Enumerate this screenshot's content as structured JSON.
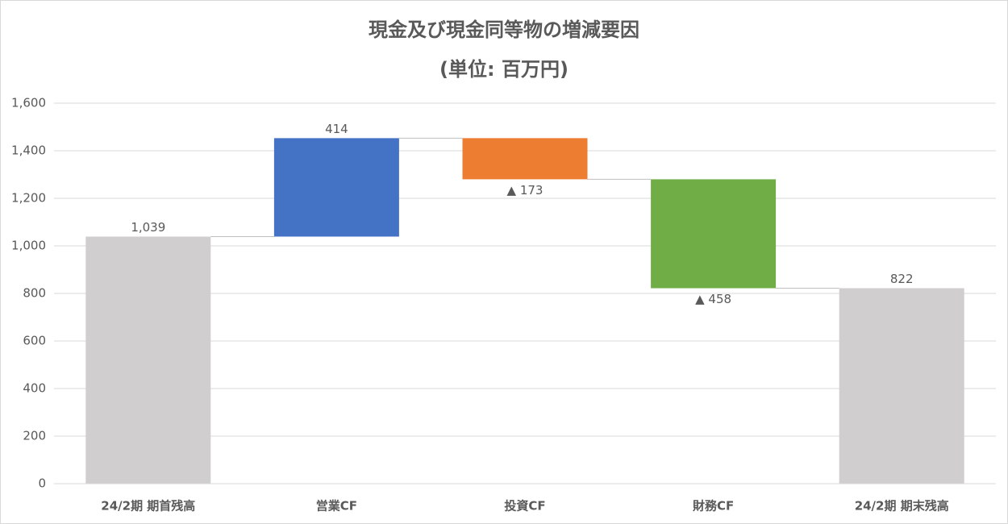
{
  "chart_data": {
    "type": "waterfall",
    "title": "現金及び現金同等物の増減要因",
    "subtitle": "(単位: 百万円)",
    "categories": [
      "24/2期 期首残高",
      "営業CF",
      "投資CF",
      "財務CF",
      "24/2期 期末残高"
    ],
    "values": [
      1039,
      414,
      -173,
      -458,
      822
    ],
    "value_labels": [
      "1,039",
      "414",
      "▲ 173",
      "▲ 458",
      "822"
    ],
    "measure": [
      "total",
      "relative",
      "relative",
      "relative",
      "total"
    ],
    "colors": [
      "#d0cece",
      "#4472c4",
      "#ed7d31",
      "#70ad47",
      "#d0cece"
    ],
    "ylim": [
      0,
      1600
    ],
    "yticks": [
      0,
      200,
      400,
      600,
      800,
      {
        "value": 1000,
        "label": "1,000"
      },
      {
        "value": 1200,
        "label": "1,200"
      },
      {
        "value": 1400,
        "label": "1,400"
      },
      {
        "value": 1600,
        "label": "1,600"
      }
    ],
    "grid": true
  }
}
